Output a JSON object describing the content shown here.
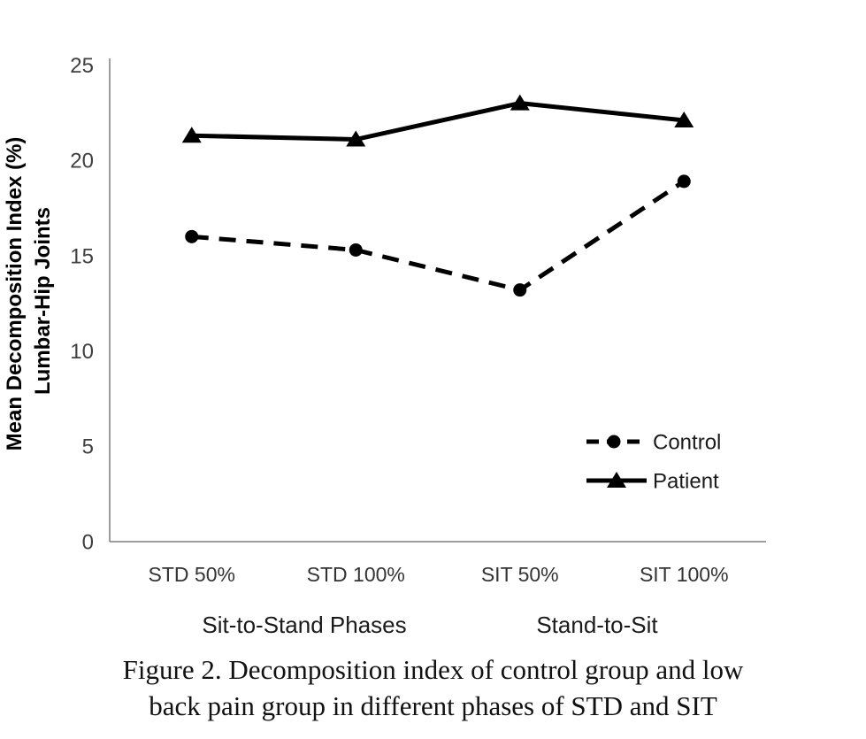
{
  "chart_data": {
    "type": "line",
    "title": "",
    "categories": [
      "STD 50%",
      "STD 100%",
      "SIT 50%",
      "SIT 100%"
    ],
    "series": [
      {
        "name": "Control",
        "values": [
          16.0,
          15.3,
          13.2,
          18.9
        ],
        "line_style": "dashed",
        "marker": "circle"
      },
      {
        "name": "Patient",
        "values": [
          21.3,
          21.1,
          23.0,
          22.1
        ],
        "line_style": "solid",
        "marker": "triangle"
      }
    ],
    "ylabel_line1": "Mean Decomposition Index (%)",
    "ylabel_line2": "Lumbar-Hip Joints",
    "ylim": [
      0,
      25
    ],
    "yticks": [
      0,
      5,
      10,
      15,
      20,
      25
    ],
    "grid": false,
    "legend_position": "right-middle",
    "legend_entries": [
      "Control",
      "Patient"
    ],
    "group_labels": [
      "Sit-to-Stand Phases",
      "Stand-to-Sit"
    ],
    "colors": {
      "series": "#000000",
      "axis": "#7f7f7f",
      "tick_text": "#3f3f3f",
      "label_text": "#1a1a1a"
    }
  },
  "caption": {
    "lines": [
      "Figure 2. Decomposition index of control group and low",
      "back pain group in different phases of STD and SIT"
    ]
  }
}
